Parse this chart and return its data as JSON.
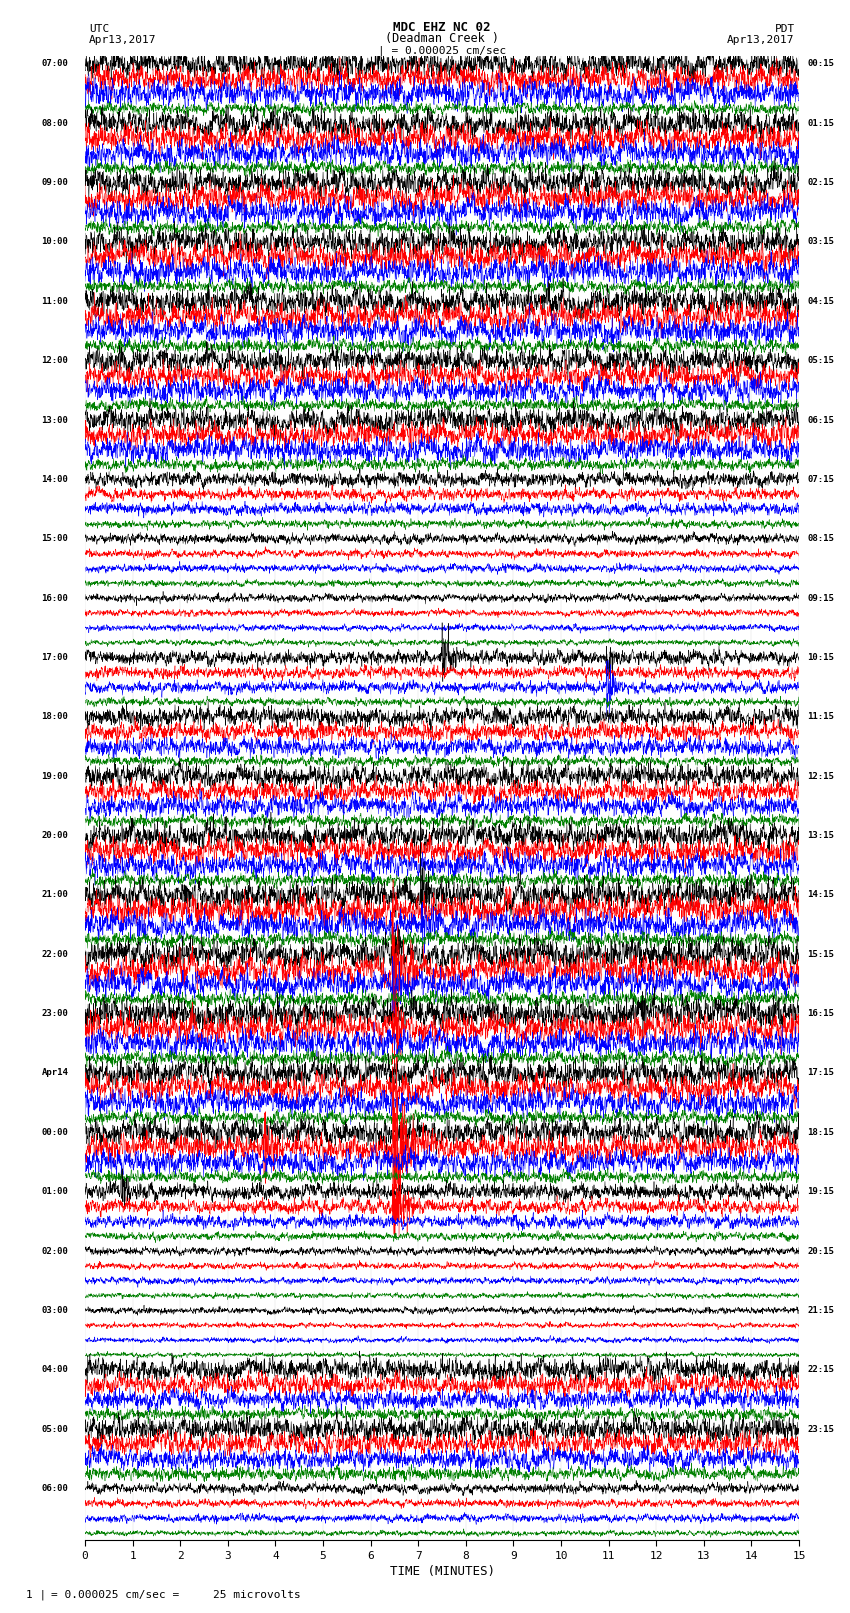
{
  "title_line1": "MDC EHZ NC 02",
  "title_line2": "(Deadman Creek )",
  "title_scale": "| = 0.000025 cm/sec",
  "label_utc": "UTC",
  "label_pdt": "PDT",
  "label_date_left": "Apr13,2017",
  "label_date_right": "Apr13,2017",
  "footer_scale": "= 0.000025 cm/sec =     25 microvolts",
  "footer_prefix": "1 |",
  "xlabel": "TIME (MINUTES)",
  "bg_color": "#ffffff",
  "trace_colors": [
    "black",
    "red",
    "blue",
    "green"
  ],
  "baseline_color": "#aaaaaa",
  "left_labels": [
    "07:00",
    "08:00",
    "09:00",
    "10:00",
    "11:00",
    "12:00",
    "13:00",
    "14:00",
    "15:00",
    "16:00",
    "17:00",
    "18:00",
    "19:00",
    "20:00",
    "21:00",
    "22:00",
    "23:00",
    "Apr14",
    "00:00",
    "01:00",
    "02:00",
    "03:00",
    "04:00",
    "05:00",
    "06:00"
  ],
  "right_labels": [
    "00:15",
    "01:15",
    "02:15",
    "03:15",
    "04:15",
    "05:15",
    "06:15",
    "07:15",
    "08:15",
    "09:15",
    "10:15",
    "11:15",
    "12:15",
    "13:15",
    "14:15",
    "15:15",
    "16:15",
    "17:15",
    "18:15",
    "19:15",
    "20:15",
    "21:15",
    "22:15",
    "23:15",
    ""
  ],
  "n_rows": 25,
  "traces_per_row": 4,
  "minutes": 15,
  "seed": 42,
  "n_points": 3000
}
